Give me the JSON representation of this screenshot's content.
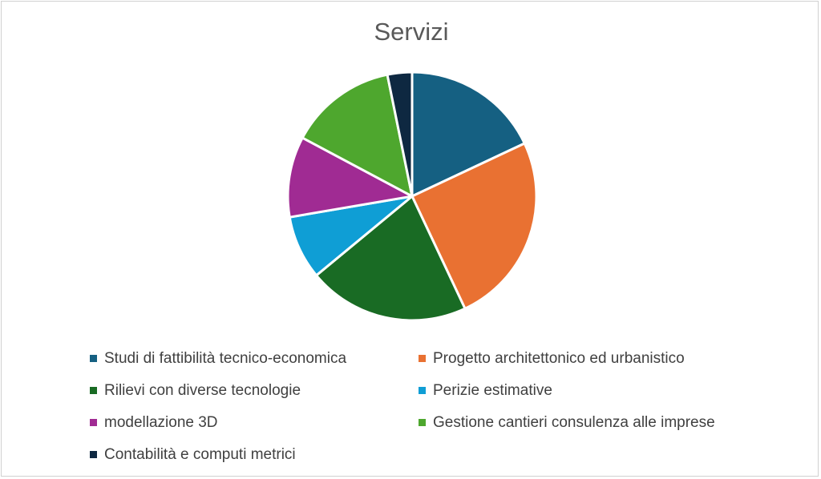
{
  "chart_data": {
    "type": "pie",
    "title": "Servizi",
    "legend_position": "bottom",
    "slices": [
      {
        "label": "Studi di fattibilità tecnico-economica",
        "value": 18,
        "color": "#156082"
      },
      {
        "label": "Progetto architettonico ed urbanistico",
        "value": 25,
        "color": "#E97132"
      },
      {
        "label": "Rilievi con diverse tecnologie",
        "value": 21,
        "color": "#196B24"
      },
      {
        "label": "Perizie estimative",
        "value": 8.3,
        "color": "#0F9ED5"
      },
      {
        "label": "modellazione 3D",
        "value": 10.5,
        "color": "#A02B93"
      },
      {
        "label": "Gestione cantieri consulenza alle imprese",
        "value": 14,
        "color": "#4EA72E"
      },
      {
        "label": "Contabilità e computi metrici",
        "value": 3.2,
        "color": "#0E2841"
      }
    ]
  }
}
